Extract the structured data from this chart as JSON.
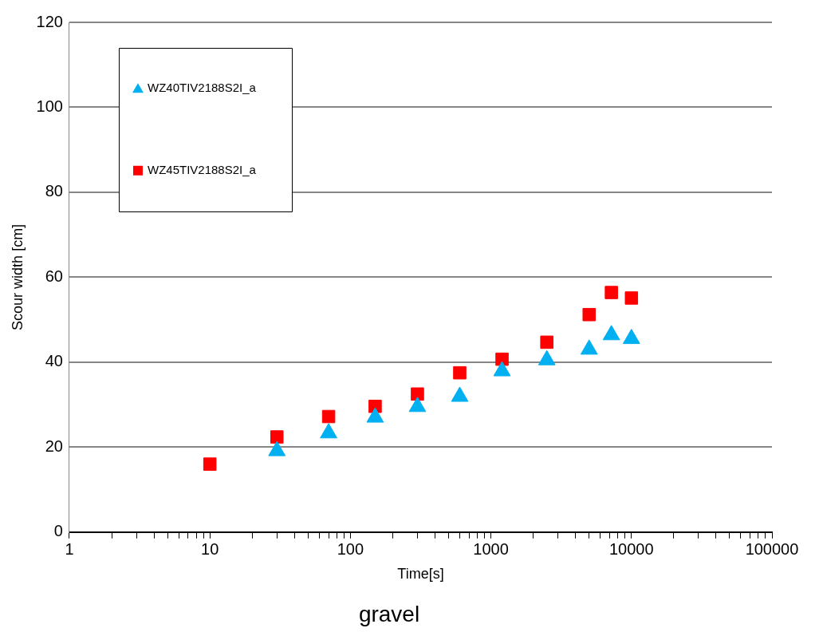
{
  "chart_data": {
    "type": "scatter",
    "title": "gravel",
    "xlabel": "Time[s]",
    "ylabel": "Scour width [cm]",
    "log": "x",
    "grid": "y",
    "legend": "top left",
    "xlim": [
      1,
      100000
    ],
    "xticks": [
      1,
      {
        "value": 2,
        "label": null
      },
      {
        "value": 3,
        "label": null
      },
      {
        "value": 4,
        "label": null
      },
      {
        "value": 5,
        "label": null
      },
      {
        "value": 6,
        "label": null
      },
      {
        "value": 7,
        "label": null
      },
      {
        "value": 8,
        "label": null
      },
      {
        "value": 9,
        "label": null
      },
      10,
      {
        "value": 20,
        "label": null
      },
      {
        "value": 30,
        "label": null
      },
      {
        "value": 40,
        "label": null
      },
      {
        "value": 50,
        "label": null
      },
      {
        "value": 60,
        "label": null
      },
      {
        "value": 70,
        "label": null
      },
      {
        "value": 80,
        "label": null
      },
      {
        "value": 90,
        "label": null
      },
      100,
      {
        "value": 200,
        "label": null
      },
      {
        "value": 300,
        "label": null
      },
      {
        "value": 400,
        "label": null
      },
      {
        "value": 500,
        "label": null
      },
      {
        "value": 600,
        "label": null
      },
      {
        "value": 700,
        "label": null
      },
      {
        "value": 800,
        "label": null
      },
      {
        "value": 900,
        "label": null
      },
      1000,
      {
        "value": 2000,
        "label": null
      },
      {
        "value": 3000,
        "label": null
      },
      {
        "value": 4000,
        "label": null
      },
      {
        "value": 5000,
        "label": null
      },
      {
        "value": 6000,
        "label": null
      },
      {
        "value": 7000,
        "label": null
      },
      {
        "value": 8000,
        "label": null
      },
      {
        "value": 9000,
        "label": null
      },
      10000,
      {
        "value": 20000,
        "label": null
      },
      {
        "value": 30000,
        "label": null
      },
      {
        "value": 40000,
        "label": null
      },
      {
        "value": 50000,
        "label": null
      },
      {
        "value": 60000,
        "label": null
      },
      {
        "value": 70000,
        "label": null
      },
      {
        "value": 80000,
        "label": null
      },
      {
        "value": 90000,
        "label": null
      },
      100000
    ],
    "ylim": [
      0,
      120
    ],
    "yticks": [
      0,
      20,
      40,
      60,
      80,
      100,
      120
    ],
    "series": [
      {
        "name": "WZ40TIV2188S2I_a",
        "color": "#00b0f0",
        "marker": "triangle",
        "x": [
          30,
          70,
          150,
          300,
          600,
          1200,
          2500,
          5000,
          7200,
          10000
        ],
        "values": [
          19.1,
          23.3,
          27.0,
          29.5,
          31.9,
          37.9,
          40.5,
          43.0,
          46.4,
          45.5
        ]
      },
      {
        "name": "WZ45TIV2188S2I_a",
        "color": "#ff0000",
        "marker": "square",
        "x": [
          10,
          30,
          70,
          150,
          300,
          600,
          1200,
          2500,
          5000,
          7200,
          10000
        ],
        "values": [
          16.0,
          22.4,
          27.2,
          29.6,
          32.5,
          37.5,
          40.7,
          44.7,
          51.2,
          56.4,
          55.1
        ]
      }
    ]
  }
}
